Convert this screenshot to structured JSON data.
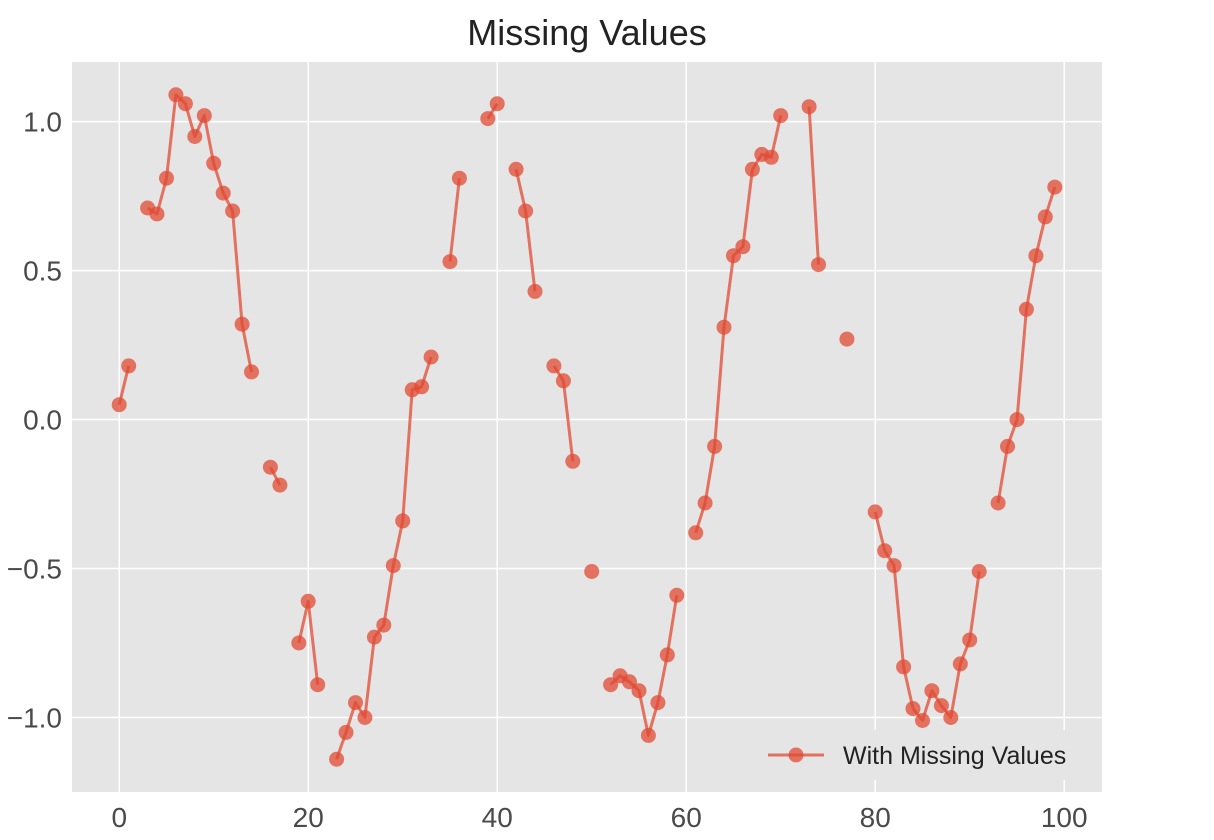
{
  "chart_data": {
    "type": "line",
    "title": "Missing Values",
    "xlabel": "",
    "ylabel": "",
    "xlim": [
      -5.0,
      104.0
    ],
    "ylim": [
      -1.25,
      1.2
    ],
    "xticks": [
      0,
      20,
      40,
      60,
      80,
      100
    ],
    "yticks": [
      1.0,
      0.5,
      0.0,
      -0.5,
      -1.0
    ],
    "xtick_labels": [
      "0",
      "20",
      "40",
      "60",
      "80",
      "100"
    ],
    "ytick_labels": [
      "1.0",
      "0.5",
      "0.0",
      "−0.5",
      "−1.0"
    ],
    "grid": true,
    "background": "#e5e5e5",
    "legend": {
      "position": "lower-right",
      "show": true
    },
    "series": [
      {
        "name": "With Missing Values",
        "color": "#e24a33",
        "marker": "circle",
        "x": [
          0,
          1,
          2,
          3,
          4,
          5,
          6,
          7,
          8,
          9,
          10,
          11,
          12,
          13,
          14,
          15,
          16,
          17,
          18,
          19,
          20,
          21,
          22,
          23,
          24,
          25,
          26,
          27,
          28,
          29,
          30,
          31,
          32,
          33,
          34,
          35,
          36,
          37,
          38,
          39,
          40,
          41,
          42,
          43,
          44,
          45,
          46,
          47,
          48,
          49,
          50,
          51,
          52,
          53,
          54,
          55,
          56,
          57,
          58,
          59,
          60,
          61,
          62,
          63,
          64,
          65,
          66,
          67,
          68,
          69,
          70,
          71,
          72,
          73,
          74,
          75,
          76,
          77,
          78,
          79,
          80,
          81,
          82,
          83,
          84,
          85,
          86,
          87,
          88,
          89,
          90,
          91,
          92,
          93,
          94,
          95,
          96,
          97,
          98,
          99
        ],
        "y": [
          0.05,
          0.18,
          null,
          0.71,
          0.69,
          0.81,
          1.09,
          1.06,
          0.95,
          1.02,
          0.86,
          0.76,
          0.7,
          0.32,
          0.16,
          null,
          -0.16,
          -0.22,
          null,
          -0.75,
          -0.61,
          -0.89,
          null,
          -1.14,
          -1.05,
          -0.95,
          -1.0,
          -0.73,
          -0.69,
          -0.49,
          -0.34,
          0.1,
          0.11,
          0.21,
          null,
          0.53,
          0.81,
          null,
          null,
          1.01,
          1.06,
          null,
          0.84,
          0.7,
          0.43,
          null,
          0.18,
          0.13,
          -0.14,
          null,
          -0.51,
          null,
          -0.89,
          -0.86,
          -0.88,
          -0.91,
          -1.06,
          -0.95,
          -0.79,
          -0.59,
          null,
          -0.38,
          -0.28,
          -0.09,
          0.31,
          0.55,
          0.58,
          0.84,
          0.89,
          0.88,
          1.02,
          null,
          null,
          1.05,
          0.52,
          null,
          null,
          0.27,
          null,
          null,
          -0.31,
          -0.44,
          -0.49,
          -0.83,
          -0.97,
          -1.01,
          -0.91,
          -0.96,
          -1.0,
          -0.82,
          -0.74,
          -0.51,
          null,
          -0.28,
          -0.09,
          0.0,
          0.37,
          0.55,
          0.68,
          0.78
        ]
      }
    ]
  }
}
